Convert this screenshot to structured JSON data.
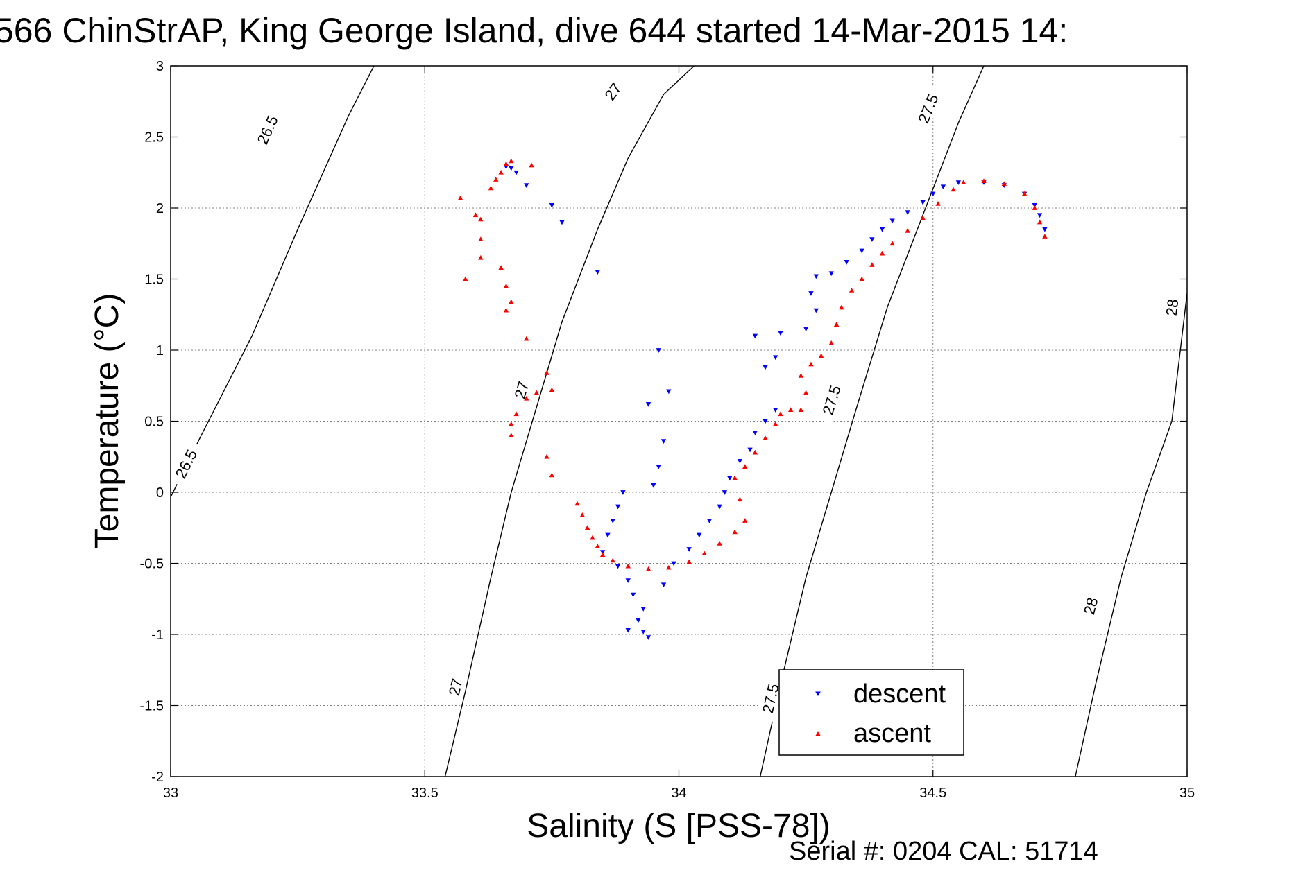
{
  "chart_data": {
    "type": "scatter",
    "title": "566 ChinStrAP, King George Island, dive 644 started 14-Mar-2015 14:",
    "xlabel": "Salinity (S [PSS-78])",
    "ylabel": "Temperature (°C)",
    "xlim": [
      33,
      35
    ],
    "ylim": [
      -2,
      3
    ],
    "xticks": [
      {
        "value": 33,
        "label": "33"
      },
      {
        "value": 33.5,
        "label": "33.5"
      },
      {
        "value": 34,
        "label": "34"
      },
      {
        "value": 34.5,
        "label": "34.5"
      },
      {
        "value": 35,
        "label": "35"
      }
    ],
    "yticks": [
      {
        "value": 3,
        "label": "3"
      },
      {
        "value": 2.5,
        "label": "2.5"
      },
      {
        "value": 2,
        "label": "2"
      },
      {
        "value": 1.5,
        "label": "1.5"
      },
      {
        "value": 1,
        "label": "1"
      },
      {
        "value": 0.5,
        "label": "0.5"
      },
      {
        "value": 0,
        "label": "0"
      },
      {
        "value": -0.5,
        "label": "-0.5"
      },
      {
        "value": -1,
        "label": "-1"
      },
      {
        "value": -1.5,
        "label": "-1.5"
      },
      {
        "value": -2,
        "label": "-2"
      }
    ],
    "grid": true,
    "legend_placement": "bottom-right",
    "series": [
      {
        "name": "descent",
        "color": "#0000ff",
        "marker": "triangle-down",
        "points": [
          [
            33.66,
            2.29
          ],
          [
            33.67,
            2.28
          ],
          [
            33.68,
            2.25
          ],
          [
            33.7,
            2.16
          ],
          [
            33.75,
            2.02
          ],
          [
            33.77,
            1.9
          ],
          [
            33.84,
            1.55
          ],
          [
            33.96,
            1.0
          ],
          [
            33.98,
            0.71
          ],
          [
            33.94,
            0.62
          ],
          [
            33.97,
            0.36
          ],
          [
            33.96,
            0.18
          ],
          [
            33.95,
            0.05
          ],
          [
            33.89,
            0.0
          ],
          [
            33.88,
            -0.1
          ],
          [
            33.87,
            -0.2
          ],
          [
            33.86,
            -0.3
          ],
          [
            33.85,
            -0.42
          ],
          [
            33.88,
            -0.52
          ],
          [
            33.9,
            -0.62
          ],
          [
            33.91,
            -0.72
          ],
          [
            33.93,
            -0.82
          ],
          [
            33.92,
            -0.9
          ],
          [
            33.9,
            -0.97
          ],
          [
            33.93,
            -0.98
          ],
          [
            33.94,
            -1.02
          ],
          [
            33.97,
            -0.65
          ],
          [
            33.99,
            -0.5
          ],
          [
            34.02,
            -0.4
          ],
          [
            34.04,
            -0.3
          ],
          [
            34.06,
            -0.2
          ],
          [
            34.08,
            -0.1
          ],
          [
            34.09,
            0.0
          ],
          [
            34.1,
            0.1
          ],
          [
            34.12,
            0.22
          ],
          [
            34.14,
            0.3
          ],
          [
            34.15,
            0.42
          ],
          [
            34.17,
            0.5
          ],
          [
            34.19,
            0.58
          ],
          [
            34.17,
            0.88
          ],
          [
            34.19,
            0.95
          ],
          [
            34.15,
            1.1
          ],
          [
            34.2,
            1.12
          ],
          [
            34.25,
            1.15
          ],
          [
            34.27,
            1.28
          ],
          [
            34.26,
            1.4
          ],
          [
            34.27,
            1.52
          ],
          [
            34.3,
            1.54
          ],
          [
            34.33,
            1.62
          ],
          [
            34.36,
            1.7
          ],
          [
            34.38,
            1.78
          ],
          [
            34.4,
            1.85
          ],
          [
            34.42,
            1.91
          ],
          [
            34.45,
            1.97
          ],
          [
            34.48,
            2.04
          ],
          [
            34.5,
            2.1
          ],
          [
            34.52,
            2.15
          ],
          [
            34.55,
            2.18
          ],
          [
            34.6,
            2.18
          ],
          [
            34.64,
            2.16
          ],
          [
            34.68,
            2.1
          ],
          [
            34.7,
            2.02
          ],
          [
            34.71,
            1.95
          ],
          [
            34.72,
            1.85
          ]
        ]
      },
      {
        "name": "ascent",
        "color": "#ff0000",
        "marker": "triangle-up",
        "points": [
          [
            33.66,
            2.31
          ],
          [
            33.67,
            2.33
          ],
          [
            33.71,
            2.3
          ],
          [
            33.65,
            2.25
          ],
          [
            33.64,
            2.2
          ],
          [
            33.63,
            2.14
          ],
          [
            33.57,
            2.07
          ],
          [
            33.6,
            1.95
          ],
          [
            33.61,
            1.92
          ],
          [
            33.61,
            1.78
          ],
          [
            33.61,
            1.65
          ],
          [
            33.58,
            1.5
          ],
          [
            33.65,
            1.58
          ],
          [
            33.66,
            1.45
          ],
          [
            33.67,
            1.34
          ],
          [
            33.66,
            1.28
          ],
          [
            33.7,
            1.08
          ],
          [
            33.74,
            0.84
          ],
          [
            33.75,
            0.72
          ],
          [
            33.72,
            0.7
          ],
          [
            33.7,
            0.66
          ],
          [
            33.68,
            0.55
          ],
          [
            33.67,
            0.48
          ],
          [
            33.67,
            0.4
          ],
          [
            33.74,
            0.25
          ],
          [
            33.75,
            0.12
          ],
          [
            33.8,
            -0.08
          ],
          [
            33.81,
            -0.16
          ],
          [
            33.82,
            -0.25
          ],
          [
            33.83,
            -0.32
          ],
          [
            33.84,
            -0.38
          ],
          [
            33.85,
            -0.44
          ],
          [
            33.87,
            -0.48
          ],
          [
            33.9,
            -0.52
          ],
          [
            33.94,
            -0.54
          ],
          [
            33.98,
            -0.53
          ],
          [
            34.02,
            -0.49
          ],
          [
            34.05,
            -0.43
          ],
          [
            34.08,
            -0.36
          ],
          [
            34.11,
            -0.28
          ],
          [
            34.13,
            -0.2
          ],
          [
            34.12,
            -0.05
          ],
          [
            34.11,
            0.1
          ],
          [
            34.13,
            0.18
          ],
          [
            34.15,
            0.28
          ],
          [
            34.17,
            0.38
          ],
          [
            34.19,
            0.48
          ],
          [
            34.2,
            0.55
          ],
          [
            34.22,
            0.58
          ],
          [
            34.24,
            0.58
          ],
          [
            34.25,
            0.7
          ],
          [
            34.24,
            0.82
          ],
          [
            34.26,
            0.9
          ],
          [
            34.28,
            0.96
          ],
          [
            34.3,
            1.05
          ],
          [
            34.31,
            1.18
          ],
          [
            34.32,
            1.3
          ],
          [
            34.34,
            1.42
          ],
          [
            34.36,
            1.5
          ],
          [
            34.38,
            1.6
          ],
          [
            34.4,
            1.68
          ],
          [
            34.42,
            1.75
          ],
          [
            34.45,
            1.84
          ],
          [
            34.48,
            1.93
          ],
          [
            34.51,
            2.03
          ],
          [
            34.54,
            2.13
          ],
          [
            34.56,
            2.18
          ],
          [
            34.6,
            2.19
          ],
          [
            34.64,
            2.17
          ],
          [
            34.68,
            2.1
          ],
          [
            34.7,
            2.0
          ],
          [
            34.71,
            1.9
          ],
          [
            34.72,
            1.8
          ]
        ]
      }
    ],
    "contours": [
      {
        "label": "26.5",
        "points": [
          [
            32.97,
            -0.25
          ],
          [
            33.06,
            0.4
          ],
          [
            33.16,
            1.1
          ],
          [
            33.25,
            1.85
          ],
          [
            33.3,
            2.25
          ],
          [
            33.35,
            2.65
          ],
          [
            33.4,
            3.0
          ]
        ],
        "label_positions": [
          [
            33.19,
            2.55
          ],
          [
            33.03,
            0.2
          ]
        ]
      },
      {
        "label": "27",
        "points": [
          [
            33.54,
            -2.0
          ],
          [
            33.58,
            -1.4
          ],
          [
            33.63,
            -0.6
          ],
          [
            33.67,
            0.0
          ],
          [
            33.72,
            0.6
          ],
          [
            33.77,
            1.2
          ],
          [
            33.84,
            1.85
          ],
          [
            33.9,
            2.35
          ],
          [
            33.97,
            2.8
          ],
          [
            34.03,
            3.0
          ]
        ],
        "label_positions": [
          [
            33.87,
            2.82
          ],
          [
            33.69,
            0.72
          ],
          [
            33.56,
            -1.37
          ]
        ]
      },
      {
        "label": "27.5",
        "points": [
          [
            34.16,
            -2.0
          ],
          [
            34.2,
            -1.35
          ],
          [
            34.25,
            -0.6
          ],
          [
            34.3,
            0.0
          ],
          [
            34.35,
            0.6
          ],
          [
            34.41,
            1.3
          ],
          [
            34.48,
            1.95
          ],
          [
            34.55,
            2.6
          ],
          [
            34.6,
            3.0
          ]
        ],
        "label_positions": [
          [
            34.49,
            2.7
          ],
          [
            34.3,
            0.65
          ],
          [
            34.18,
            -1.45
          ]
        ]
      },
      {
        "label": "28",
        "points": [
          [
            34.78,
            -2.0
          ],
          [
            34.82,
            -1.35
          ],
          [
            34.87,
            -0.6
          ],
          [
            34.92,
            0.0
          ],
          [
            34.97,
            0.5
          ],
          [
            35.01,
            1.7
          ]
        ],
        "label_positions": [
          [
            34.97,
            1.3
          ],
          [
            34.81,
            -0.8
          ]
        ]
      }
    ],
    "footer": "Serial #: 0204  CAL: 51714"
  }
}
